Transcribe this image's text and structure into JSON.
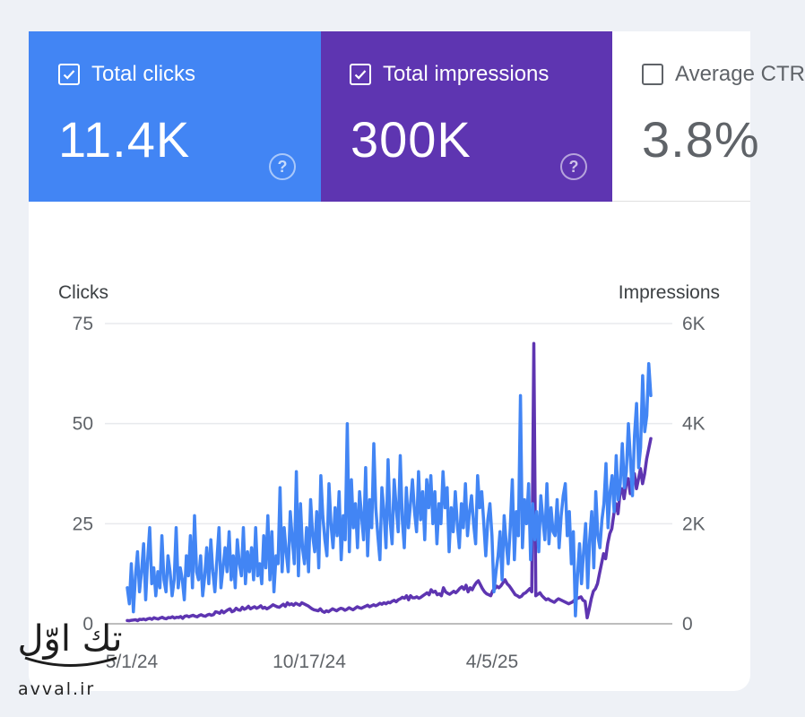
{
  "metrics": {
    "clicks": {
      "label": "Total clicks",
      "value": "11.4K",
      "checked": true
    },
    "impressions": {
      "label": "Total impressions",
      "value": "300K",
      "checked": true
    },
    "ctr": {
      "label": "Average CTR",
      "value": "3.8%",
      "checked": false
    }
  },
  "colors": {
    "clicks": "#4285f4",
    "impressions": "#5e35b1"
  },
  "chart_data": {
    "type": "line",
    "left_axis_title": "Clicks",
    "right_axis_title": "Impressions",
    "left_ticks": [
      "0",
      "25",
      "50",
      "75"
    ],
    "right_ticks": [
      "0",
      "2K",
      "4K",
      "6K"
    ],
    "left_ylim": [
      0,
      75
    ],
    "right_ylim": [
      0,
      6000
    ],
    "x_tick_labels": [
      "5/1/24",
      "10/17/24",
      "4/5/25"
    ],
    "series": [
      {
        "name": "Clicks",
        "axis": "left",
        "values": [
          9,
          5,
          15,
          3,
          12,
          18,
          8,
          13,
          20,
          6,
          16,
          24,
          10,
          14,
          7,
          13,
          9,
          22,
          11,
          8,
          17,
          13,
          7,
          11,
          24,
          9,
          14,
          11,
          6,
          17,
          12,
          22,
          9,
          27,
          13,
          11,
          17,
          7,
          12,
          19,
          10,
          21,
          13,
          8,
          16,
          24,
          9,
          14,
          19,
          13,
          23,
          11,
          17,
          9,
          21,
          15,
          12,
          24,
          10,
          18,
          13,
          19,
          11,
          24,
          12,
          15,
          10,
          22,
          14,
          27,
          11,
          23,
          8,
          17,
          15,
          34,
          13,
          24,
          18,
          13,
          28,
          21,
          15,
          38,
          12,
          30,
          19,
          15,
          24,
          13,
          31,
          22,
          18,
          28,
          14,
          37,
          27,
          21,
          17,
          35,
          25,
          19,
          29,
          22,
          33,
          16,
          27,
          21,
          50,
          18,
          36,
          24,
          30,
          19,
          33,
          27,
          21,
          39,
          17,
          31,
          24,
          45,
          29,
          22,
          16,
          34,
          28,
          19,
          41,
          26,
          20,
          36,
          29,
          23,
          42,
          26,
          19,
          34,
          24,
          30,
          36,
          28,
          23,
          38,
          26,
          33,
          21,
          36,
          29,
          37,
          25,
          33,
          20,
          30,
          25,
          38,
          29,
          34,
          18,
          29,
          23,
          33,
          25,
          19,
          30,
          24,
          35,
          22,
          28,
          32,
          25,
          20,
          37,
          29,
          33,
          25,
          17,
          26,
          30,
          22,
          8,
          13,
          17,
          23,
          11,
          27,
          20,
          15,
          24,
          36,
          16,
          28,
          22,
          57,
          19,
          31,
          25,
          35,
          16,
          30,
          21,
          28,
          18,
          32,
          26,
          21,
          35,
          20,
          29,
          23,
          22,
          31,
          19,
          27,
          32,
          35,
          22,
          28,
          15,
          23,
          2,
          12,
          20,
          10,
          18,
          25,
          9,
          21,
          28,
          14,
          33,
          22,
          19,
          26,
          30,
          40,
          24,
          33,
          37,
          28,
          42,
          31,
          35,
          45,
          34,
          38,
          50,
          41,
          32,
          47,
          55,
          39,
          44,
          62,
          48,
          52,
          65,
          57
        ]
      },
      {
        "name": "Impressions",
        "axis": "right",
        "values": [
          65,
          60,
          70,
          75,
          80,
          62,
          90,
          85,
          95,
          78,
          100,
          110,
          90,
          120,
          105,
          95,
          115,
          130,
          110,
          100,
          125,
          120,
          140,
          115,
          130,
          125,
          145,
          110,
          150,
          160,
          140,
          155,
          170,
          150,
          140,
          165,
          180,
          160,
          150,
          175,
          190,
          170,
          185,
          240,
          230,
          210,
          260,
          220,
          250,
          280,
          300,
          240,
          260,
          310,
          280,
          270,
          330,
          290,
          310,
          350,
          300,
          320,
          340,
          310,
          330,
          360,
          310,
          330,
          300,
          320,
          350,
          380,
          360,
          340,
          330,
          360,
          390,
          350,
          420,
          380,
          400,
          370,
          410,
          390,
          370,
          420,
          400,
          380,
          360,
          330,
          300,
          280,
          270,
          260,
          300,
          250,
          230,
          260,
          240,
          270,
          300,
          280,
          260,
          290,
          310,
          300,
          270,
          290,
          320,
          300,
          280,
          310,
          340,
          320,
          310,
          330,
          350,
          370,
          340,
          360,
          380,
          360,
          380,
          410,
          390,
          420,
          400,
          430,
          420,
          450,
          470,
          440,
          480,
          500,
          530,
          510,
          560,
          480,
          560,
          520,
          520,
          540,
          510,
          530,
          560,
          590,
          620,
          580,
          680,
          630,
          650,
          580,
          600,
          560,
          720,
          640,
          610,
          590,
          620,
          650,
          620,
          660,
          710,
          740,
          690,
          770,
          640,
          720,
          680,
          760,
          820,
          860,
          780,
          700,
          640,
          600,
          580,
          560,
          660,
          700,
          750,
          720,
          760,
          820,
          880,
          800,
          760,
          700,
          640,
          580,
          560,
          530,
          550,
          600,
          620,
          660,
          700,
          640,
          5600,
          560,
          590,
          620,
          560,
          520,
          480,
          500,
          470,
          450,
          430,
          470,
          500,
          480,
          460,
          440,
          420,
          400,
          420,
          440,
          480,
          500,
          520,
          540,
          470,
          450,
          120,
          300,
          500,
          650,
          700,
          800,
          1000,
          1200,
          1400,
          1300,
          1600,
          1800,
          1900,
          2200,
          2400,
          2200,
          2600,
          2700,
          2500,
          2800,
          2900,
          2600,
          2800,
          3000,
          2700,
          2900,
          3100,
          2800,
          3000,
          3300,
          3500,
          3700
        ]
      }
    ]
  },
  "watermark": {
    "logo_text": "تك اوّل",
    "site": "avval.ir"
  }
}
